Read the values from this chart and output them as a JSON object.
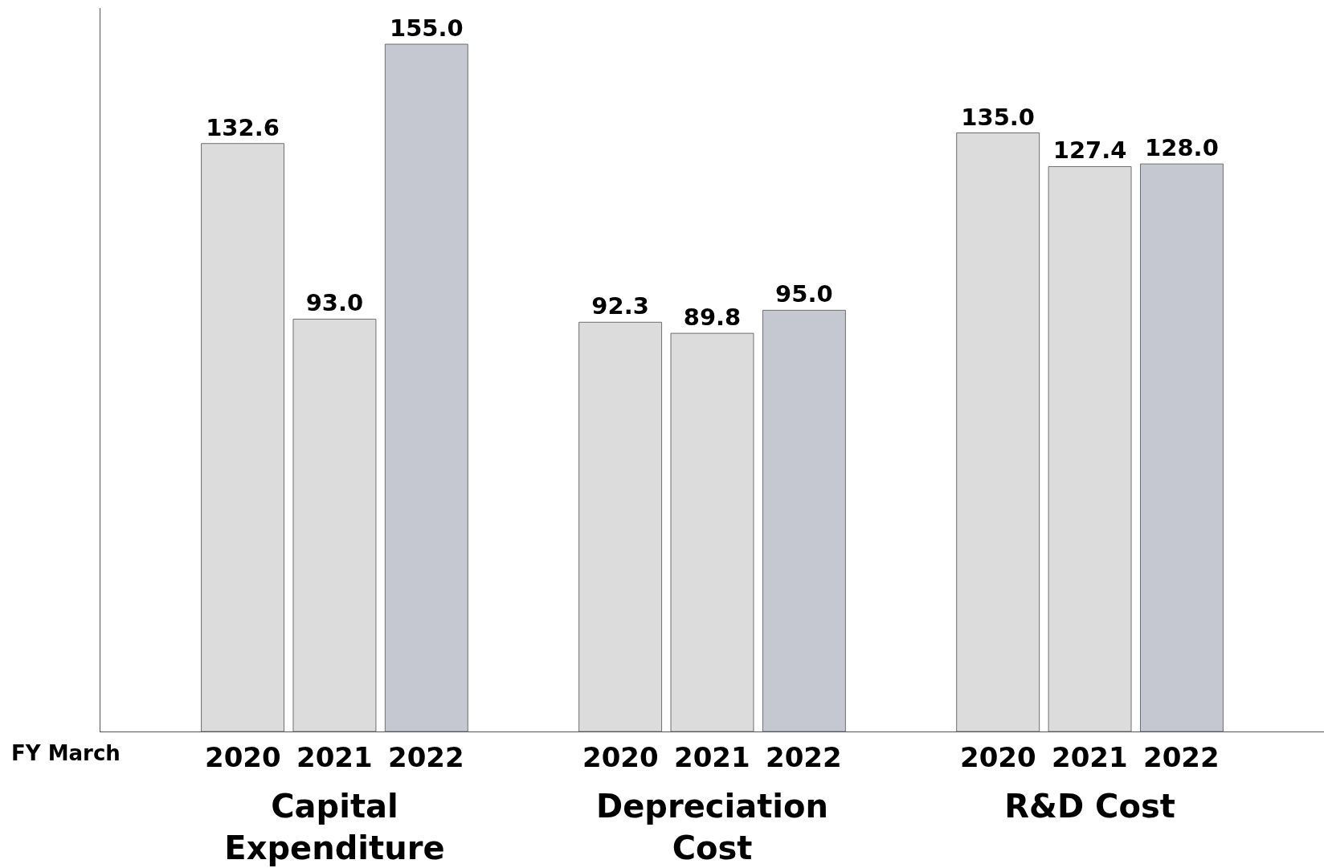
{
  "chart_data": {
    "type": "bar",
    "xlabel": "FY March",
    "categories": [
      "Capital Expenditure",
      "Depreciation Cost",
      "R&D Cost"
    ],
    "data_labels": false,
    "grid": false,
    "legend": false,
    "series": [
      {
        "name": "2020",
        "color": "#dcdcdc",
        "values": [
          132.6,
          92.3,
          135
        ],
        "value_labels": [
          "132.6",
          "92.3",
          "135.0"
        ]
      },
      {
        "name": "2021",
        "color": "#dcdcdc",
        "values": [
          93,
          89.8,
          127.4
        ],
        "value_labels": [
          "93.0",
          "89.8",
          "127.4"
        ]
      },
      {
        "name": "2022",
        "color": "#c5c8d1",
        "values": [
          155,
          95,
          128
        ],
        "value_labels": [
          "155.0",
          "95.0",
          "128.0"
        ]
      }
    ]
  }
}
